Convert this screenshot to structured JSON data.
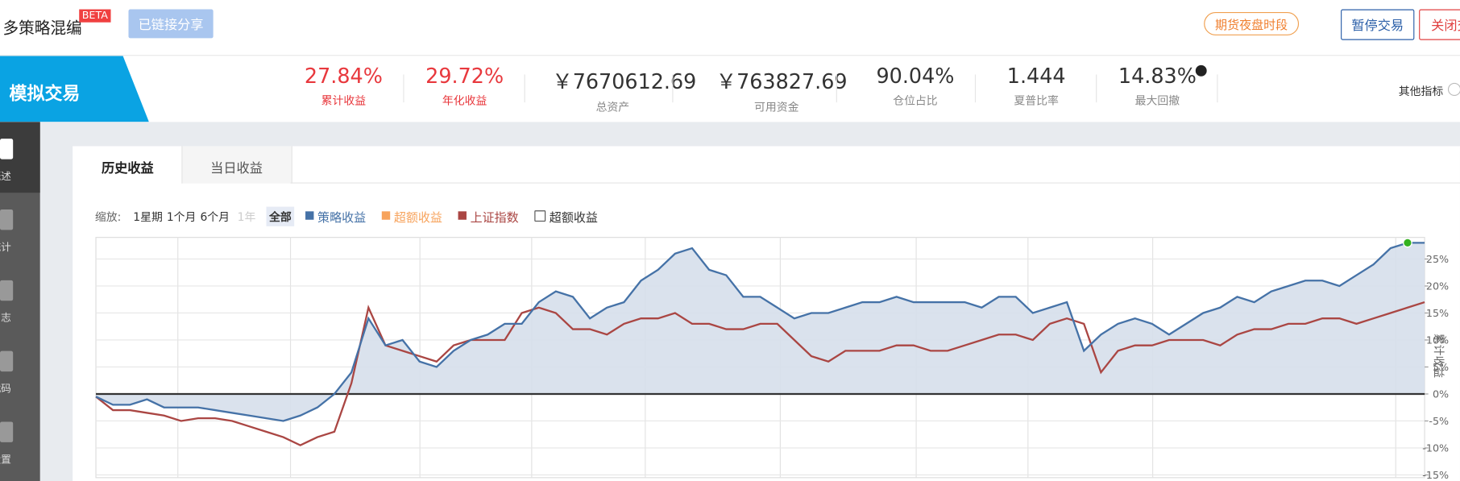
{
  "header": {
    "title": "多策略混编",
    "badge": "BETA",
    "share_button": "已链接分享",
    "notice": "期货夜盘时段",
    "pause_button": "暂停交易",
    "close_button": "关闭交易"
  },
  "banner": {
    "mode": "模拟交易",
    "more": "其他指标",
    "metrics": [
      {
        "value": "27.84%",
        "label": "累计收益"
      },
      {
        "value": "29.72%",
        "label": "年化收益"
      },
      {
        "value": "￥7670612.69",
        "label": "总资产"
      },
      {
        "value": "￥763827.69",
        "label": "可用资金"
      },
      {
        "value": "90.04%",
        "label": "仓位占比"
      },
      {
        "value": "1.444",
        "label": "夏普比率"
      },
      {
        "value": "14.83%",
        "label": "最大回撤"
      }
    ]
  },
  "sidebar": [
    "概述",
    "统计",
    "日志",
    "代码",
    "设置"
  ],
  "tabs": [
    "历史收益",
    "当日收益"
  ],
  "toolbar": {
    "zoom_label": "缩放:",
    "zoom_options": [
      "1星期",
      "1个月",
      "6个月",
      "1年",
      "全部"
    ],
    "extra_legend": {
      "name": "超额收益",
      "color": "#f7a35c"
    },
    "checkbox_label": "超额收益"
  },
  "chart_data": {
    "type": "line",
    "y_label": "累计收益",
    "ylim": [
      -15.5,
      29
    ],
    "grid": true,
    "yticks": [
      {
        "value": -15,
        "label": "-15%"
      },
      {
        "value": -10,
        "label": "-10%"
      },
      {
        "value": -5,
        "label": "-5%"
      },
      {
        "value": 0,
        "label": "0%"
      },
      {
        "value": 5,
        "label": "5%"
      },
      {
        "value": 10,
        "label": "10%"
      },
      {
        "value": 15,
        "label": "15%"
      },
      {
        "value": 20,
        "label": "20%"
      },
      {
        "value": 25,
        "label": "25%"
      }
    ],
    "series": [
      {
        "name": "策略收益",
        "color": "#4572a7",
        "values": [
          -0.5,
          -2,
          -2,
          -1,
          -2.5,
          -2.5,
          -2.5,
          -3,
          -3.5,
          -4,
          -4.5,
          -5,
          -4,
          -2.5,
          0,
          4,
          14,
          9,
          10,
          6,
          5,
          8,
          10,
          11,
          13,
          13,
          17,
          19,
          18,
          14,
          16,
          17,
          21,
          23,
          26,
          27,
          23,
          22,
          18,
          18,
          16,
          14,
          15,
          15,
          16,
          17,
          17,
          18,
          17,
          17,
          17,
          17,
          16,
          18,
          18,
          15,
          16,
          17,
          8,
          11,
          13,
          14,
          13,
          11,
          13,
          15,
          16,
          18,
          17,
          19,
          20,
          21,
          21,
          20,
          22,
          24,
          27,
          28,
          28
        ]
      },
      {
        "name": "上证指数",
        "color": "#aa4643",
        "values": [
          -0.5,
          -3,
          -3,
          -3.5,
          -4,
          -5,
          -4.5,
          -4.5,
          -5,
          -6,
          -7,
          -8,
          -9.5,
          -8,
          -7,
          2,
          16,
          9,
          8,
          7,
          6,
          9,
          10,
          10,
          10,
          15,
          16,
          15,
          12,
          12,
          11,
          13,
          14,
          14,
          15,
          13,
          13,
          12,
          12,
          13,
          13,
          10,
          7,
          6,
          8,
          8,
          8,
          9,
          9,
          8,
          8,
          9,
          10,
          11,
          11,
          10,
          13,
          14,
          13,
          4,
          8,
          9,
          9,
          10,
          10,
          10,
          9,
          11,
          12,
          12,
          13,
          13,
          14,
          14,
          13,
          14,
          15,
          16,
          17
        ]
      }
    ]
  }
}
